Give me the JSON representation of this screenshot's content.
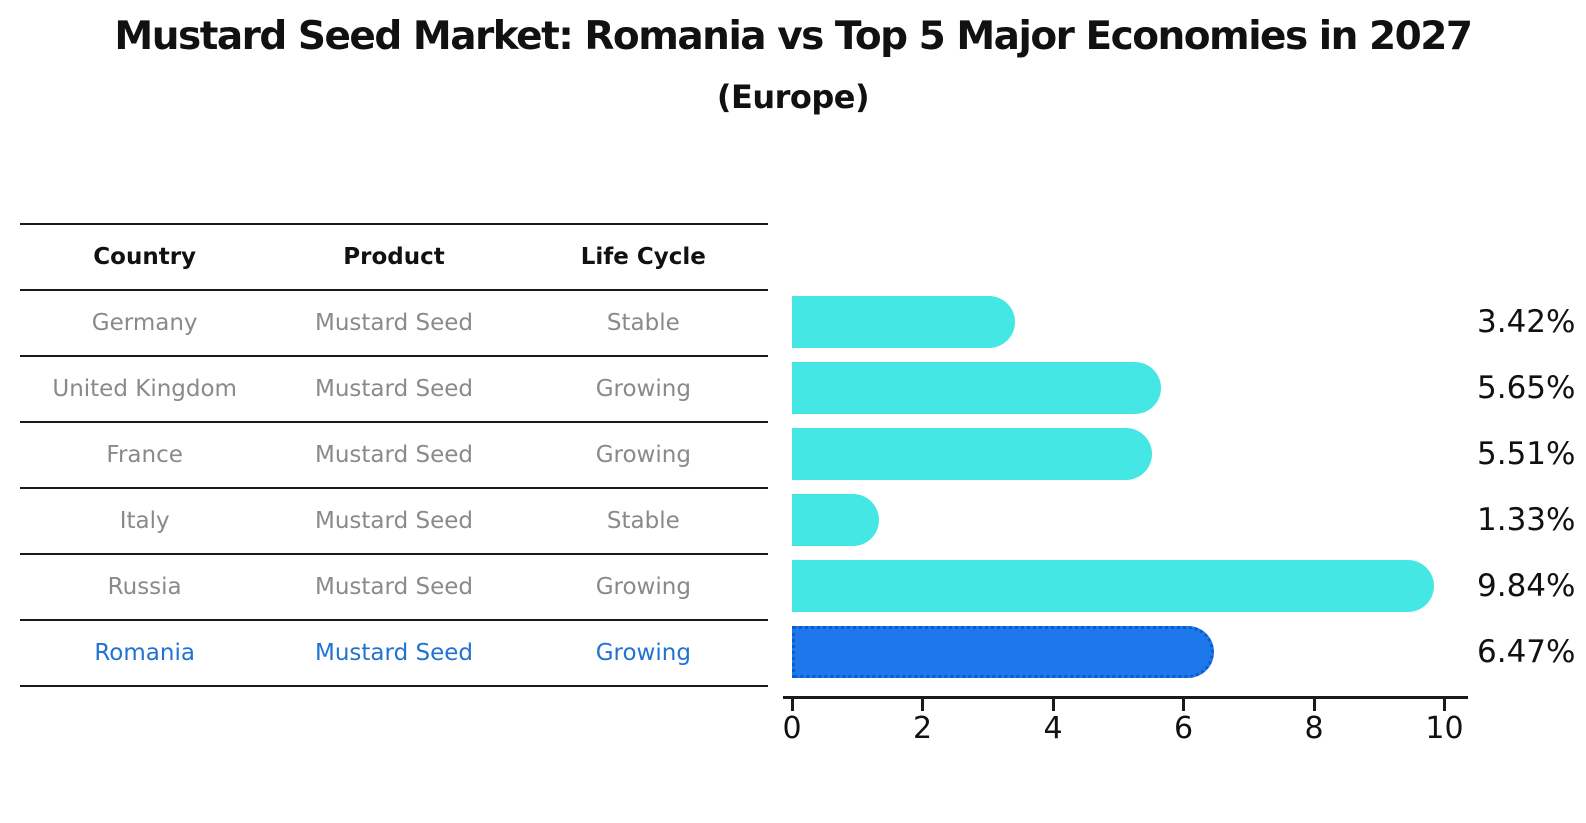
{
  "title": "Mustard Seed Market: Romania vs Top 5 Major Economies in 2027",
  "subtitle": "(Europe)",
  "table": {
    "headers": [
      "Country",
      "Product",
      "Life Cycle"
    ],
    "rows": [
      {
        "country": "Germany",
        "product": "Mustard Seed",
        "life_cycle": "Stable",
        "highlight": false
      },
      {
        "country": "United Kingdom",
        "product": "Mustard Seed",
        "life_cycle": "Growing",
        "highlight": false
      },
      {
        "country": "France",
        "product": "Mustard Seed",
        "life_cycle": "Growing",
        "highlight": false
      },
      {
        "country": "Italy",
        "product": "Mustard Seed",
        "life_cycle": "Stable",
        "highlight": false
      },
      {
        "country": "Russia",
        "product": "Mustard Seed",
        "life_cycle": "Growing",
        "highlight": false
      },
      {
        "country": "Romania",
        "product": "Mustard Seed",
        "life_cycle": "Growing",
        "highlight": true
      }
    ]
  },
  "chart_data": {
    "type": "bar",
    "orientation": "horizontal",
    "title": "Mustard Seed Market: Romania vs Top 5 Major Economies in 2027 (Europe)",
    "categories": [
      "Germany",
      "United Kingdom",
      "France",
      "Italy",
      "Russia",
      "Romania"
    ],
    "values": [
      3.42,
      5.65,
      5.51,
      1.33,
      9.84,
      6.47
    ],
    "value_labels": [
      "3.42%",
      "5.65%",
      "5.51%",
      "1.33%",
      "9.84%",
      "6.47%"
    ],
    "xlabel": "",
    "ylabel": "",
    "xlim": [
      0,
      10.5
    ],
    "x_ticks": [
      0,
      2,
      4,
      6,
      8,
      10
    ],
    "grid": false,
    "legend": "none",
    "highlight_index": 5
  },
  "colors": {
    "bar": "#45E7E4",
    "highlight_bar": "#1E78EB",
    "highlight_border": "#0B5BD3",
    "text_dark": "#111111",
    "text_gray": "#8A8A8A",
    "text_highlight": "#2273CF"
  }
}
